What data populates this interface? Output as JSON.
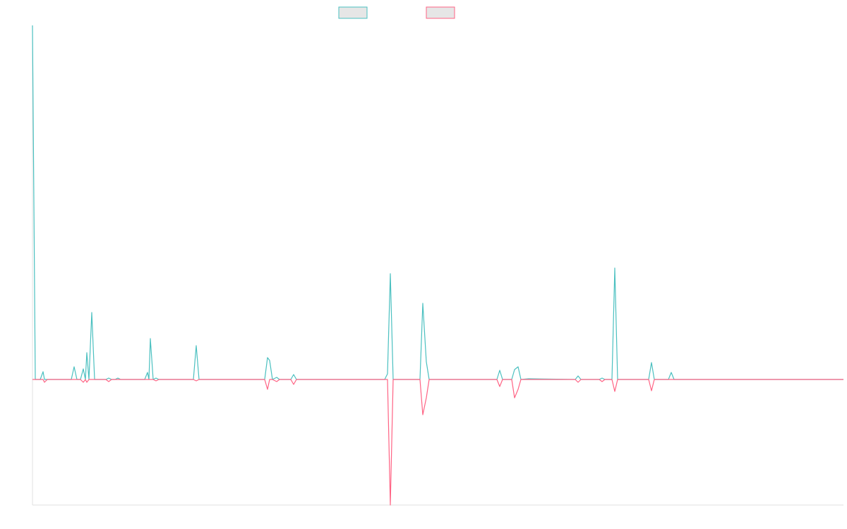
{
  "chart_data": {
    "type": "line",
    "x": [
      0,
      4,
      11,
      15,
      17,
      21,
      55,
      59,
      63,
      68,
      72,
      75,
      77,
      80,
      84,
      88,
      104,
      108,
      112,
      117,
      121,
      125,
      159,
      163,
      165,
      167,
      171,
      175,
      179,
      228,
      232,
      236,
      329,
      333,
      336,
      340,
      346,
      350,
      366,
      370,
      374,
      499,
      503,
      507,
      511,
      549,
      553,
      558,
      562,
      658,
      662,
      666,
      679,
      683,
      688,
      692,
      703,
      769,
      773,
      777,
      803,
      807,
      811,
      821,
      825,
      829,
      873,
      877,
      881,
      901,
      905,
      909,
      1149
    ],
    "series": [
      {
        "color": "#4bc0c0",
        "values": [
          502,
          0,
          0,
          11,
          0,
          0,
          0,
          18,
          0,
          0,
          15,
          0,
          38,
          0,
          95,
          0,
          0,
          2,
          0,
          0,
          2,
          0,
          0,
          10,
          0,
          58,
          0,
          2,
          0,
          0,
          48,
          0,
          0,
          31,
          27,
          0,
          3,
          0,
          0,
          7,
          0,
          0,
          8,
          150,
          0,
          0,
          108,
          25,
          0,
          0,
          13,
          0,
          0,
          14,
          18,
          0,
          1,
          0,
          5,
          0,
          0,
          2,
          0,
          0,
          158,
          0,
          0,
          24,
          0,
          0,
          10,
          0,
          0
        ]
      },
      {
        "color": "#ff6384",
        "values": [
          0,
          0,
          0,
          0,
          -4,
          0,
          0,
          0,
          0,
          0,
          -4,
          0,
          -4,
          0,
          0,
          0,
          0,
          -3,
          0,
          0,
          0,
          0,
          0,
          0,
          0,
          0,
          0,
          -2,
          0,
          0,
          -2,
          0,
          0,
          -14,
          0,
          0,
          -3,
          0,
          0,
          -7,
          0,
          0,
          0,
          -178,
          0,
          0,
          -50,
          -26,
          0,
          0,
          -10,
          0,
          0,
          -26,
          -14,
          0,
          0,
          0,
          -4,
          0,
          0,
          -3,
          0,
          0,
          -17,
          0,
          0,
          -16,
          0,
          0,
          0,
          0,
          0
        ]
      }
    ],
    "xlim": [
      0,
      1149
    ],
    "ylim": [
      -178,
      502
    ]
  }
}
